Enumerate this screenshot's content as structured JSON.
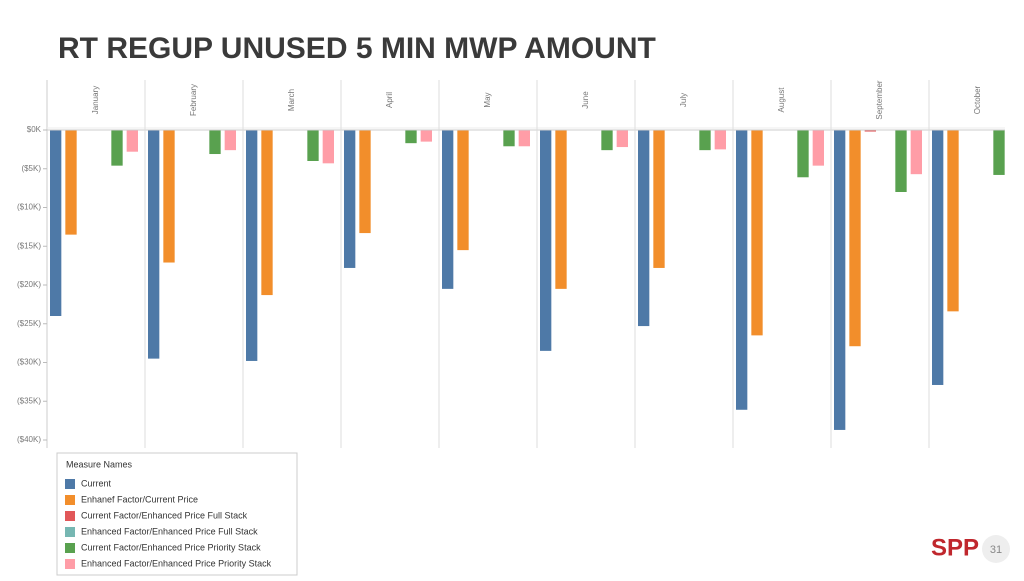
{
  "chart_data": {
    "type": "bar",
    "title": "RT REGUP UNUSED 5 MIN MWP AMOUNT",
    "categories": [
      "January",
      "February",
      "March",
      "April",
      "May",
      "June",
      "July",
      "August",
      "September",
      "October"
    ],
    "series": [
      {
        "name": "Current",
        "color": "#4e79a7",
        "values": [
          -24000,
          -29500,
          -29800,
          -17800,
          -20500,
          -28500,
          -25300,
          -36100,
          -38700,
          -32900
        ]
      },
      {
        "name": "Enhanef Factor/Current Price",
        "color": "#f28e2b",
        "values": [
          -13500,
          -17100,
          -21300,
          -13300,
          -15500,
          -20500,
          -17800,
          -26500,
          -27900,
          -23400
        ]
      },
      {
        "name": "Current Factor/Enhanced Price Full Stack",
        "color": "#e15759",
        "values": [
          null,
          null,
          null,
          null,
          null,
          null,
          null,
          null,
          -200,
          null
        ]
      },
      {
        "name": "Enhanced Factor/Enhanced Price Full Stack",
        "color": "#76b7b2",
        "values": [
          null,
          null,
          null,
          null,
          null,
          null,
          null,
          null,
          null,
          null
        ]
      },
      {
        "name": "Current Factor/Enhanced Price Priority Stack",
        "color": "#59a14f",
        "values": [
          -4600,
          -3100,
          -4000,
          -1700,
          -2100,
          -2600,
          -2600,
          -6100,
          -8000,
          -5800
        ]
      },
      {
        "name": "Enhanced Factor/Enhanced Price Priority Stack",
        "color": "#ff9da7",
        "values": [
          -2800,
          -2600,
          -4300,
          -1500,
          -2100,
          -2200,
          -2500,
          -4600,
          -5700,
          null
        ]
      }
    ],
    "ylim": [
      -40000,
      0
    ],
    "yticks": [
      {
        "value": 0,
        "label": "$0K"
      },
      {
        "value": -5000,
        "label": "($5K)"
      },
      {
        "value": -10000,
        "label": "($10K)"
      },
      {
        "value": -15000,
        "label": "($15K)"
      },
      {
        "value": -20000,
        "label": "($20K)"
      },
      {
        "value": -25000,
        "label": "($25K)"
      },
      {
        "value": -30000,
        "label": "($30K)"
      },
      {
        "value": -35000,
        "label": "($35K)"
      },
      {
        "value": -40000,
        "label": "($40K)"
      }
    ],
    "legend_title": "Measure Names",
    "legend_position": "bottom-left"
  },
  "footer": {
    "logo": "SPP",
    "page": "31"
  }
}
